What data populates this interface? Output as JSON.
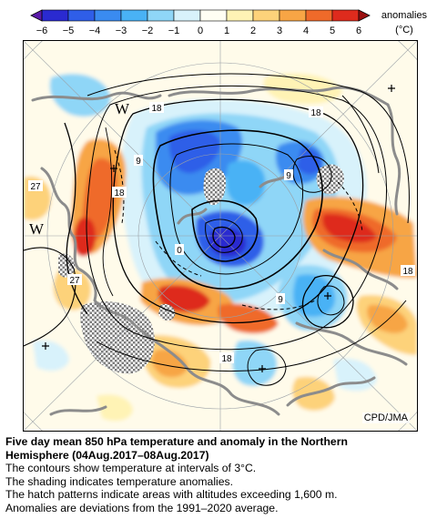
{
  "colorbar": {
    "ticks": [
      "−6",
      "−5",
      "−4",
      "−3",
      "−2",
      "−1",
      "0",
      "1",
      "2",
      "3",
      "4",
      "5",
      "6"
    ],
    "label_line1": "anomalies",
    "label_line2": "(°C)",
    "colors": [
      "#2a2ad0",
      "#2f5ee8",
      "#3a8bf0",
      "#49b2f5",
      "#8fd6f7",
      "#d8f2fb",
      "#fffef3",
      "#fff3b5",
      "#fdd27a",
      "#f7a545",
      "#ef6a2a",
      "#de2b1d"
    ]
  },
  "map": {
    "contour_labels": [
      "18",
      "18",
      "9",
      "18",
      "27",
      "9",
      "0",
      "27",
      "9",
      "18",
      "18"
    ],
    "letters": [
      "W",
      "W"
    ],
    "credit": "CPD/JMA"
  },
  "caption": {
    "title_line1": "Five day mean 850 hPa temperature and anomaly in the Northern",
    "title_line2": "Hemisphere (04Aug.2017–08Aug.2017)",
    "line1": "The contours show temperature at intervals of 3°C.",
    "line2": "The shading indicates temperature anomalies.",
    "line3": "The hatch patterns indicate areas with altitudes exceeding 1,600 m.",
    "line4": "Anomalies are deviations from the 1991–2020 average."
  }
}
